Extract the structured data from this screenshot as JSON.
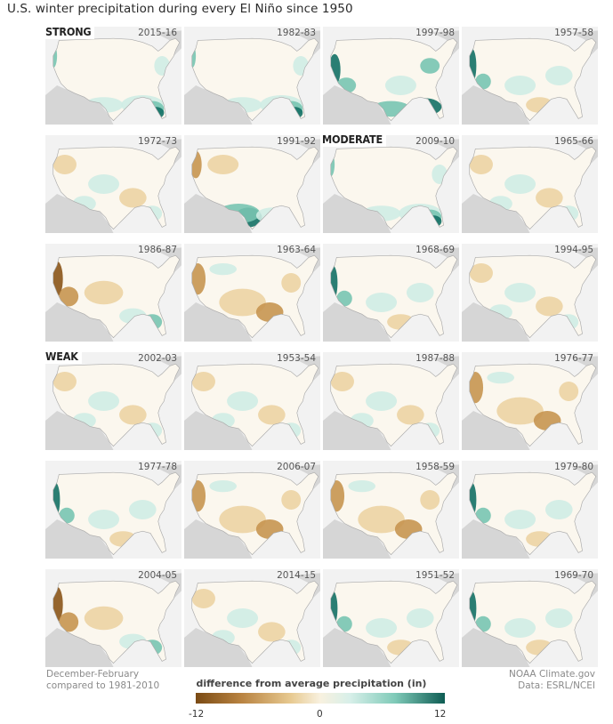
{
  "title": "U.S. winter precipitation during every El Niño since 1950",
  "categories": {
    "strong": "STRONG",
    "moderate": "MODERATE",
    "weak": "WEAK"
  },
  "panels": [
    {
      "year": "2015-16",
      "pattern": "wetsouth"
    },
    {
      "year": "1982-83",
      "pattern": "wetsouth"
    },
    {
      "year": "1997-98",
      "pattern": "wetall"
    },
    {
      "year": "1957-58",
      "pattern": "wetwest"
    },
    {
      "year": "1972-73",
      "pattern": "mixed"
    },
    {
      "year": "1991-92",
      "pattern": "wettexas"
    },
    {
      "year": "2009-10",
      "pattern": "wetsouth"
    },
    {
      "year": "1965-66",
      "pattern": "mixed"
    },
    {
      "year": "1986-87",
      "pattern": "drywest"
    },
    {
      "year": "1963-64",
      "pattern": "dry"
    },
    {
      "year": "1968-69",
      "pattern": "wetwest"
    },
    {
      "year": "1994-95",
      "pattern": "mixed"
    },
    {
      "year": "2002-03",
      "pattern": "mixed"
    },
    {
      "year": "1953-54",
      "pattern": "mixed"
    },
    {
      "year": "1987-88",
      "pattern": "mixed"
    },
    {
      "year": "1976-77",
      "pattern": "dry"
    },
    {
      "year": "1977-78",
      "pattern": "wetwest"
    },
    {
      "year": "2006-07",
      "pattern": "dry"
    },
    {
      "year": "1958-59",
      "pattern": "dry"
    },
    {
      "year": "1979-80",
      "pattern": "wetwest"
    },
    {
      "year": "2004-05",
      "pattern": "drywest"
    },
    {
      "year": "2014-15",
      "pattern": "mixed"
    },
    {
      "year": "1951-52",
      "pattern": "wetwest"
    },
    {
      "year": "1969-70",
      "pattern": "wetwest"
    }
  ],
  "footer": {
    "left_line1": "December-February",
    "left_line2": "compared to 1981-2010",
    "right_line1": "NOAA Climate.gov",
    "right_line2": "Data: ESRL/NCEI"
  },
  "legend": {
    "title": "difference from average precipitation (in)",
    "min_label": "-12",
    "mid_label": "0",
    "max_label": "12",
    "colors": {
      "dry": "#7a4a14",
      "neutral": "#f8f1df",
      "wet": "#0e5c53"
    }
  }
}
